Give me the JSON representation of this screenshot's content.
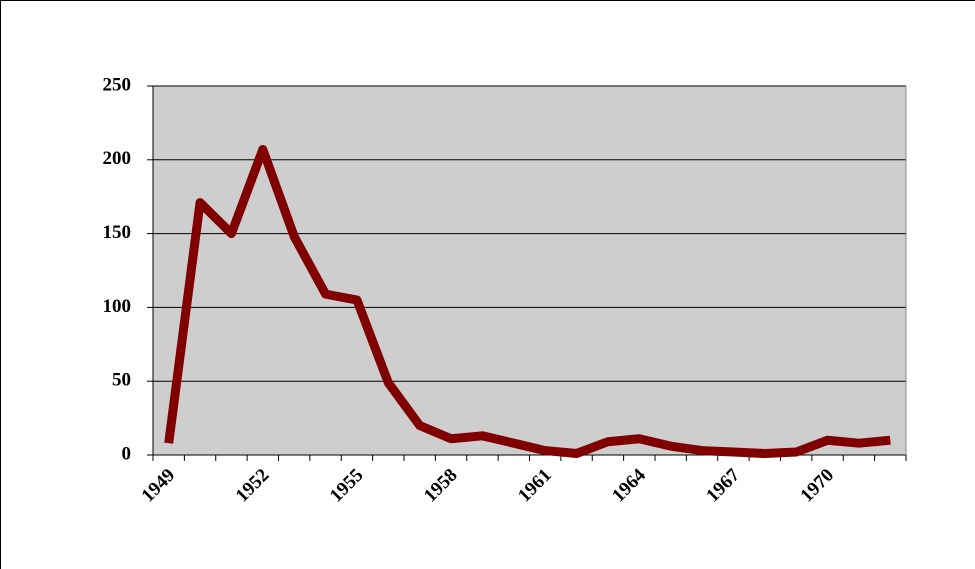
{
  "chart_data": {
    "type": "line",
    "categories": [
      "1949",
      null,
      null,
      "1952",
      null,
      null,
      "1955",
      null,
      null,
      "1958",
      null,
      null,
      "1961",
      null,
      null,
      "1964",
      null,
      null,
      "1967",
      null,
      null,
      "1970",
      null,
      null
    ],
    "series": [
      {
        "color": "#800000",
        "values": [
          8,
          171,
          150,
          207,
          148,
          109,
          105,
          49,
          20,
          11,
          13,
          8,
          3,
          1,
          9,
          11,
          6,
          3,
          2,
          1,
          2,
          10,
          8,
          10
        ]
      }
    ],
    "ylim": [
      0,
      250
    ],
    "yticks": [
      0,
      50,
      100,
      150,
      200,
      250
    ],
    "grid": true
  }
}
